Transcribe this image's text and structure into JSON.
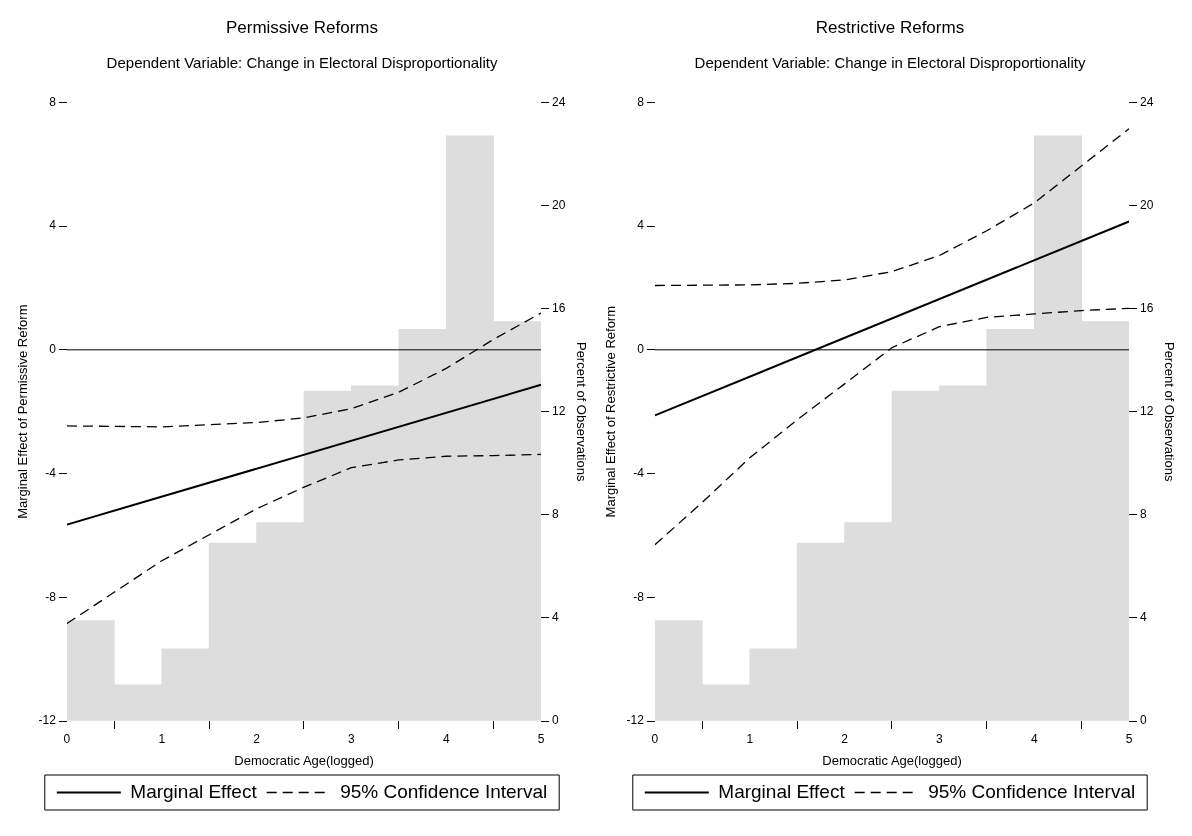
{
  "chart_data": [
    {
      "type": "line",
      "title": "Permissive Reforms",
      "subtitle": "Dependent Variable: Change in Electoral Disproportionality",
      "xlabel": "Democratic Age(logged)",
      "ylabel": "Marginal Effect of Permissive Reform",
      "y2label": "Percent of Observations",
      "xlim": [
        0,
        5
      ],
      "xticks": [
        0,
        1,
        2,
        3,
        4,
        5
      ],
      "ylim": [
        -12,
        8
      ],
      "yticks": [
        -12,
        -8,
        -4,
        0,
        4,
        8
      ],
      "y2lim": [
        0,
        24
      ],
      "y2ticks": [
        0,
        4,
        8,
        12,
        16,
        20,
        24
      ],
      "grid": false,
      "legend": "bottom",
      "marker": "none",
      "ref_lines": [
        {
          "axis": "y",
          "value": 0,
          "color": "#000000"
        }
      ],
      "series": [
        {
          "type": "histogram",
          "axis": "y2",
          "color": "#dddddd",
          "bins": [
            0,
            0.5,
            1,
            1.5,
            2,
            2.5,
            3,
            3.5,
            4,
            4.5,
            5
          ],
          "values": [
            3.9,
            1.4,
            2.8,
            6.9,
            7.7,
            12.8,
            13.0,
            15.2,
            22.7,
            15.5
          ]
        },
        {
          "name": "Marginal Effect",
          "color": "#000000",
          "line_style": "solid",
          "x": [
            0,
            5
          ],
          "values": [
            -5.65,
            -1.13
          ]
        },
        {
          "name": "95% Confidence Interval",
          "color": "#000000",
          "line_style": "dashed",
          "x": [
            0,
            1,
            2,
            2.5,
            3,
            3.5,
            4,
            4.5,
            5
          ],
          "values": [
            -8.85,
            -6.82,
            -5.14,
            -4.44,
            -3.81,
            -3.56,
            -3.44,
            -3.42,
            -3.38
          ]
        },
        {
          "color": "#000000",
          "line_style": "dashed",
          "x": [
            0,
            1,
            2,
            2.5,
            3,
            3.5,
            4,
            4.5,
            5
          ],
          "values": [
            -2.46,
            -2.49,
            -2.35,
            -2.2,
            -1.9,
            -1.37,
            -0.6,
            0.34,
            1.19
          ]
        }
      ]
    },
    {
      "type": "line",
      "title": "Restrictive Reforms",
      "subtitle": "Dependent Variable: Change in Electoral Disproportionality",
      "xlabel": "Democratic Age(logged)",
      "ylabel": "Marginal Effect of Restrictive Reform",
      "y2label": "Percent of Observations",
      "xlim": [
        0,
        5
      ],
      "xticks": [
        0,
        1,
        2,
        3,
        4,
        5
      ],
      "ylim": [
        -12,
        8
      ],
      "yticks": [
        -12,
        -8,
        -4,
        0,
        4,
        8
      ],
      "y2lim": [
        0,
        24
      ],
      "y2ticks": [
        0,
        4,
        8,
        12,
        16,
        20,
        24
      ],
      "grid": false,
      "legend": "bottom",
      "marker": "none",
      "ref_lines": [
        {
          "axis": "y",
          "value": 0,
          "color": "#000000"
        }
      ],
      "series": [
        {
          "type": "histogram",
          "axis": "y2",
          "color": "#dddddd",
          "bins": [
            0,
            0.5,
            1,
            1.5,
            2,
            2.5,
            3,
            3.5,
            4,
            4.5,
            5
          ],
          "values": [
            3.9,
            1.4,
            2.8,
            6.9,
            7.7,
            12.8,
            13.0,
            15.2,
            22.7,
            15.5
          ]
        },
        {
          "name": "Marginal Effect",
          "color": "#000000",
          "line_style": "solid",
          "x": [
            0,
            5
          ],
          "values": [
            -2.12,
            4.15
          ]
        },
        {
          "name": "95% Confidence Interval",
          "color": "#000000",
          "line_style": "dashed",
          "x": [
            0,
            0.5,
            1,
            1.5,
            2,
            2.5,
            3,
            3.5,
            4,
            4.5,
            5
          ],
          "values": [
            -6.3,
            -4.93,
            -3.49,
            -2.26,
            -1.1,
            0.07,
            0.75,
            1.05,
            1.16,
            1.27,
            1.34
          ]
        },
        {
          "color": "#000000",
          "line_style": "dashed",
          "x": [
            0,
            0.5,
            1,
            1.5,
            2,
            2.5,
            3,
            3.5,
            4,
            4.5,
            5
          ],
          "values": [
            2.08,
            2.09,
            2.1,
            2.15,
            2.26,
            2.53,
            3.05,
            3.85,
            4.75,
            5.95,
            7.15
          ]
        }
      ]
    }
  ]
}
